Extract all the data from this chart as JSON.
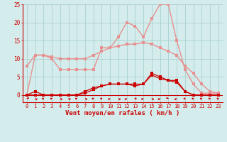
{
  "x": [
    0,
    1,
    2,
    3,
    4,
    5,
    6,
    7,
    8,
    9,
    10,
    11,
    12,
    13,
    14,
    15,
    16,
    17,
    18,
    19,
    20,
    21,
    22,
    23
  ],
  "line1": [
    8,
    11,
    11,
    10.5,
    10,
    10,
    10,
    10,
    11,
    12,
    13,
    13.5,
    14,
    14,
    14.5,
    14,
    13,
    12,
    11,
    8,
    6,
    3,
    1,
    0.5
  ],
  "line2": [
    0,
    11,
    11,
    10,
    7,
    7,
    7,
    7,
    7,
    13,
    13,
    16,
    20,
    19,
    16,
    21,
    25,
    25,
    15,
    7,
    3,
    0.5,
    0.5,
    0.5
  ],
  "line3": [
    0,
    1,
    0,
    0,
    0,
    0,
    0,
    1,
    2,
    2.5,
    3,
    3,
    3,
    3,
    3,
    5.5,
    4.5,
    4,
    3.5,
    1,
    0,
    0,
    0,
    0
  ],
  "line4": [
    0,
    0,
    0,
    0,
    0,
    0,
    0,
    0.5,
    1.5,
    2.5,
    3,
    3,
    3,
    2.5,
    3,
    6,
    5,
    4,
    4,
    1,
    0,
    0,
    0,
    0
  ],
  "color_light": "#e89090",
  "color_dark": "#cc0000",
  "xlabel": "Vent moyen/en rafales ( km/h )",
  "xlim_min": -0.5,
  "xlim_max": 23.5,
  "ylim_min": -2.0,
  "ylim_max": 25,
  "yticks": [
    0,
    5,
    10,
    15,
    20,
    25
  ],
  "xticks": [
    0,
    1,
    2,
    3,
    4,
    5,
    6,
    7,
    8,
    9,
    10,
    11,
    12,
    13,
    14,
    15,
    16,
    17,
    18,
    19,
    20,
    21,
    22,
    23
  ],
  "bg_color": "#d4ecec",
  "grid_color": "#aad0d0",
  "markersize": 2.5,
  "lw_light": 1.0,
  "lw_dark": 0.9,
  "tick_fontsize": 5.0,
  "xlabel_fontsize": 6.5,
  "arrow_dirs": [
    225,
    315,
    90,
    90,
    315,
    315,
    90,
    315,
    90,
    90,
    45,
    315,
    45,
    270,
    45,
    315,
    45,
    135,
    45,
    90,
    90,
    90,
    90,
    90
  ]
}
